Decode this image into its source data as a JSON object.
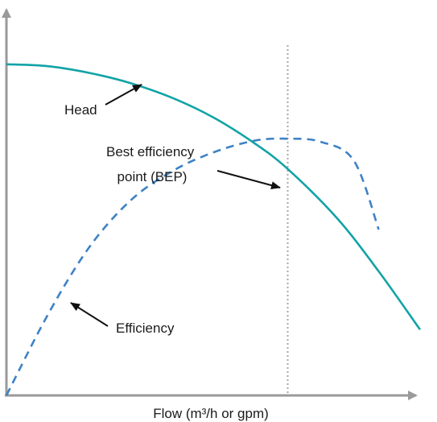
{
  "chart_data": {
    "type": "line",
    "title": "",
    "xlabel": "Flow (m³/h or gpm)",
    "ylabel": "",
    "grid": false,
    "legend": "none",
    "xlim": [
      0,
      100
    ],
    "ylim": [
      0,
      100
    ],
    "series": [
      {
        "name": "Head",
        "style": "solid",
        "color": "#12a3a6",
        "x": [
          0,
          10,
          20,
          30,
          40,
          50,
          60,
          68,
          80,
          90,
          100
        ],
        "y": [
          84.1,
          83.6,
          81.9,
          79.3,
          75.6,
          70.6,
          64.0,
          57.5,
          44.9,
          31.5,
          16.7
        ]
      },
      {
        "name": "Efficiency",
        "style": "dashed",
        "color": "#3e82c4",
        "x": [
          0,
          10,
          20,
          30,
          40,
          50,
          60,
          68,
          76,
          84,
          90
        ],
        "y": [
          0,
          20.5,
          37.6,
          49.5,
          56.9,
          61.7,
          64.7,
          65.2,
          64.4,
          59.6,
          42.1
        ]
      }
    ],
    "bep_x": 68,
    "annotations": [
      {
        "text": "Head",
        "target_series": "Head"
      },
      {
        "lines": [
          "Best efficiency",
          "point (BEP)"
        ],
        "target": "bep"
      },
      {
        "text": "Efficiency",
        "target_series": "Efficiency"
      }
    ]
  }
}
